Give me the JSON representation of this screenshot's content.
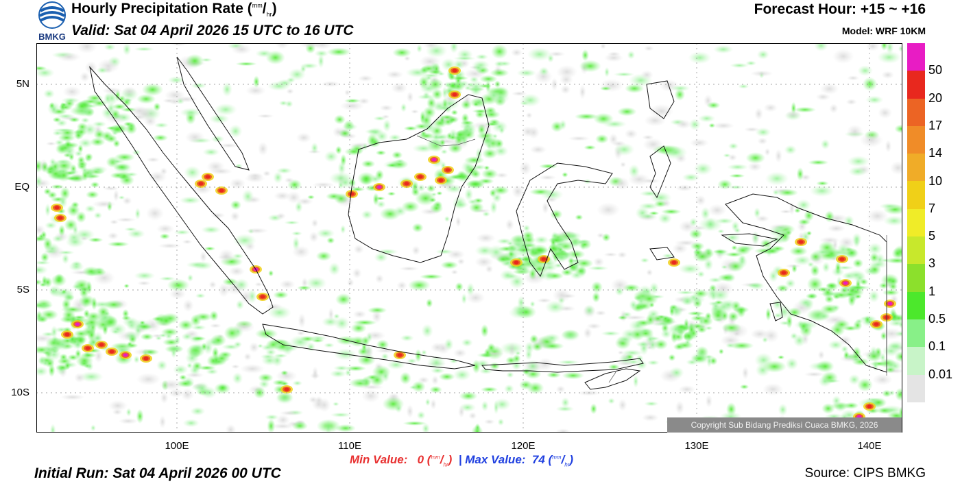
{
  "header": {
    "logo_text": "BMKG",
    "title": "Hourly Precipitation Rate (",
    "unit_num": "mm",
    "unit_den": "hr",
    "title_close": ")",
    "valid": "Valid: Sat 04 April 2026 15 UTC to 16 UTC",
    "forecast_hour": "Forecast Hour: +15 ~ +16",
    "model": "Model: WRF 10KM"
  },
  "axes": {
    "lat_labels": [
      "5N",
      "EQ",
      "5S",
      "10S"
    ],
    "lon_labels": [
      "100E",
      "110E",
      "120E",
      "130E",
      "140E"
    ]
  },
  "legend": {
    "labels": [
      "50",
      "20",
      "17",
      "14",
      "10",
      "7",
      "5",
      "3",
      "1",
      "0.5",
      "0.1",
      "0.01"
    ],
    "colors": [
      "#e81cc4",
      "#e8281e",
      "#ec6424",
      "#f08c28",
      "#f0ac28",
      "#f0d018",
      "#f0ec28",
      "#c8e82c",
      "#8ce02c",
      "#4ce82c",
      "#88f088",
      "#c8f4c8",
      "#e4e4e4"
    ]
  },
  "stats": {
    "min_label": "Min Value:",
    "min_value": "0",
    "separator": "|",
    "max_label": "Max Value:",
    "max_value": "74",
    "unit_open": "(",
    "unit_num": "mm",
    "unit_den": "hr",
    "unit_close": ")"
  },
  "footer": {
    "initial_run": "Initial Run: Sat 04 April 2026 00 UTC",
    "source": "Source: CIPS BMKG",
    "copyright": "Copyright Sub Bidang Prediksi Cuaca BMKG, 2026"
  }
}
